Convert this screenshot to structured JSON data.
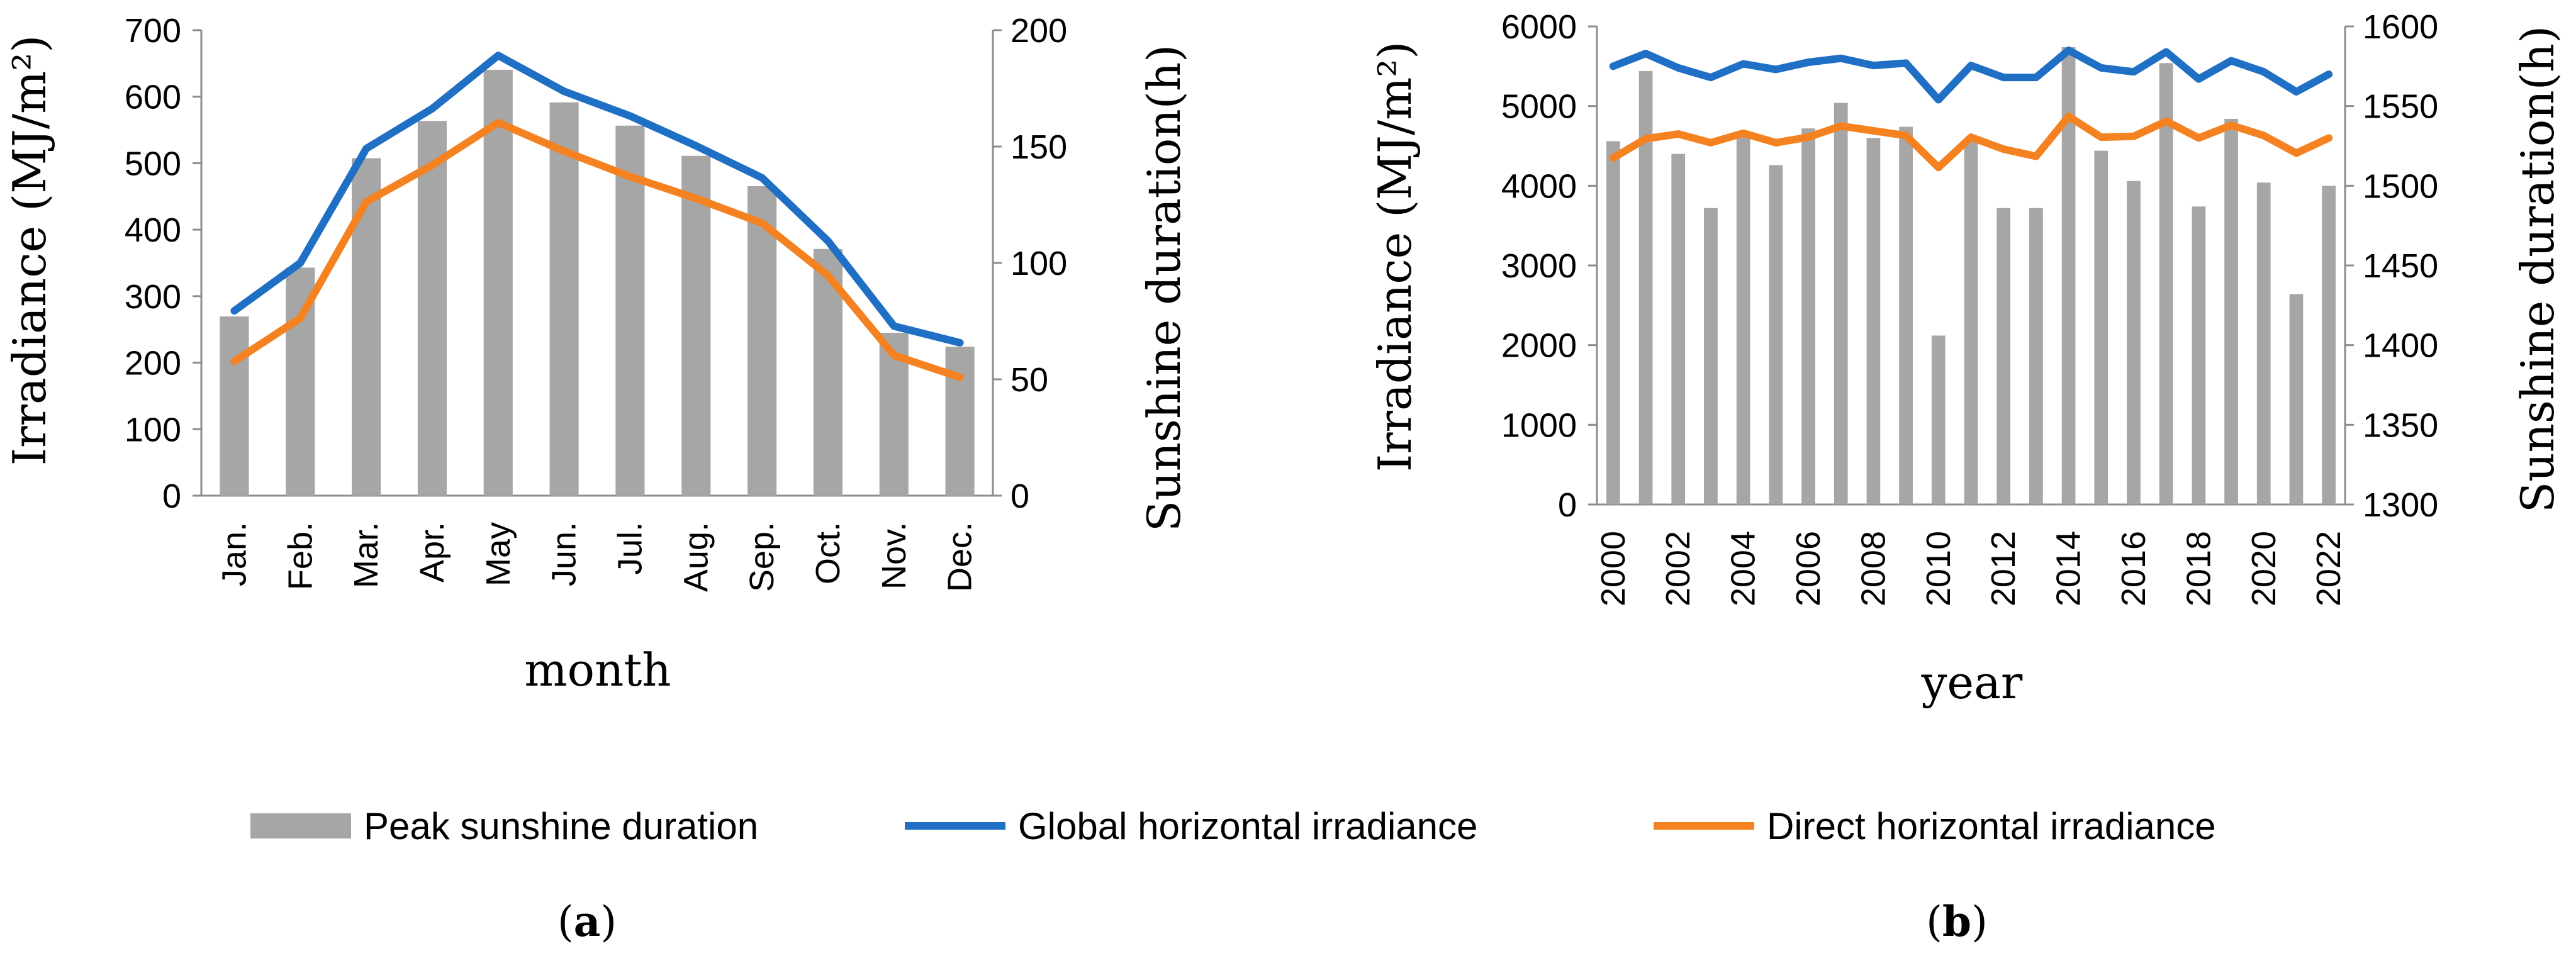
{
  "colors": {
    "bar": "#a6a6a6",
    "global": "#1f6fc5",
    "direct": "#f58220"
  },
  "legend": {
    "bar_label": "Peak sunshine duration",
    "global_label": "Global horizontal irradiance",
    "direct_label": "Direct horizontal irradiance"
  },
  "captions": {
    "a": "a",
    "b": "b"
  },
  "chart_data": [
    {
      "type": "bar+line",
      "panel": "a",
      "xlabel": "month",
      "ylabel": "Irradiance (MJ/m²)",
      "y2label": "Sunshine duration(h)",
      "ylim": [
        0,
        700
      ],
      "yticks": [
        0,
        100,
        200,
        300,
        400,
        500,
        600,
        700
      ],
      "y2lim": [
        0,
        200
      ],
      "y2ticks": [
        0,
        50,
        100,
        150,
        200
      ],
      "categories": [
        "Jan.",
        "Feb.",
        "Mar.",
        "Apr.",
        "May",
        "Jun.",
        "Jul.",
        "Aug.",
        "Sep.",
        "Oct.",
        "Nov.",
        "Dec."
      ],
      "bars": {
        "name": "Peak sunshine duration",
        "axis": "right",
        "values": [
          77,
          98,
          145,
          161,
          183,
          169,
          159,
          146,
          133,
          106,
          70,
          64
        ]
      },
      "series": [
        {
          "name": "Global horizontal irradiance",
          "axis": "left",
          "values": [
            278,
            350,
            522,
            582,
            662,
            608,
            571,
            526,
            478,
            383,
            255,
            230
          ]
        },
        {
          "name": "Direct horizontal irradiance",
          "axis": "left",
          "values": [
            202,
            267,
            442,
            497,
            561,
            518,
            480,
            447,
            410,
            331,
            211,
            178
          ]
        }
      ]
    },
    {
      "type": "bar+line",
      "panel": "b",
      "xlabel": "year",
      "ylabel": "Irradiance (MJ/m²)",
      "y2label": "Sunshine duration(h)",
      "ylim": [
        0,
        6000
      ],
      "yticks": [
        0,
        1000,
        2000,
        3000,
        4000,
        5000,
        6000
      ],
      "y2lim": [
        1300,
        1600
      ],
      "y2ticks": [
        1300,
        1350,
        1400,
        1450,
        1500,
        1550,
        1600
      ],
      "categories": [
        "2000",
        "2001",
        "2002",
        "2003",
        "2004",
        "2005",
        "2006",
        "2007",
        "2008",
        "2009",
        "2010",
        "2011",
        "2012",
        "2013",
        "2014",
        "2015",
        "2016",
        "2017",
        "2018",
        "2019",
        "2020",
        "2021",
        "2022"
      ],
      "tick_labels": [
        "2000",
        "2002",
        "2004",
        "2006",
        "2008",
        "2010",
        "2012",
        "2014",
        "2016",
        "2018",
        "2020",
        "2022"
      ],
      "bars": {
        "name": "Peak sunshine duration",
        "axis": "right",
        "values": [
          1528,
          1572,
          1520,
          1486,
          1532,
          1513,
          1536,
          1552,
          1530,
          1537,
          1406,
          1528,
          1486,
          1486,
          1587,
          1522,
          1503,
          1577,
          1487,
          1542,
          1502,
          1432,
          1500
        ]
      },
      "series": [
        {
          "name": "Global horizontal irradiance",
          "axis": "left",
          "values": [
            5500,
            5660,
            5480,
            5360,
            5530,
            5460,
            5550,
            5600,
            5510,
            5540,
            5080,
            5510,
            5360,
            5360,
            5700,
            5480,
            5430,
            5680,
            5340,
            5570,
            5430,
            5180,
            5400
          ]
        },
        {
          "name": "Direct horizontal irradiance",
          "axis": "left",
          "values": [
            4350,
            4590,
            4650,
            4540,
            4660,
            4540,
            4610,
            4750,
            4690,
            4630,
            4230,
            4610,
            4460,
            4370,
            4870,
            4610,
            4620,
            4810,
            4600,
            4760,
            4630,
            4410,
            4600
          ]
        }
      ]
    }
  ]
}
